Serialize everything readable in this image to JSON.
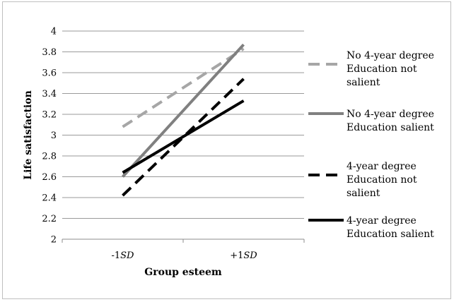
{
  "chart_data": {
    "type": "line",
    "xlabel": "Group esteem",
    "ylabel": "Life satisfaction",
    "categories": [
      {
        "pre": "-1",
        "em": "SD"
      },
      {
        "pre": "+1",
        "em": "SD"
      }
    ],
    "ylim": [
      2,
      4
    ],
    "yticks": [
      "2",
      "2.2",
      "2.4",
      "2.6",
      "2.8",
      "3",
      "3.2",
      "3.4",
      "3.6",
      "3.8",
      "4"
    ],
    "grid": true,
    "legend_position": "right",
    "series": [
      {
        "name_lines": [
          "No 4-year degree",
          "Education not",
          "salient"
        ],
        "values": [
          3.08,
          3.83
        ],
        "color": "#a6a6a6",
        "dashed": true
      },
      {
        "name_lines": [
          "No 4-year degree",
          "Education salient"
        ],
        "values": [
          2.6,
          3.87
        ],
        "color": "#808080",
        "dashed": false
      },
      {
        "name_lines": [
          "4-year degree",
          "Education not",
          "salient"
        ],
        "values": [
          2.42,
          3.54
        ],
        "color": "#000000",
        "dashed": true
      },
      {
        "name_lines": [
          "4-year degree",
          "Education salient"
        ],
        "values": [
          2.64,
          3.33
        ],
        "color": "#000000",
        "dashed": false
      }
    ]
  }
}
